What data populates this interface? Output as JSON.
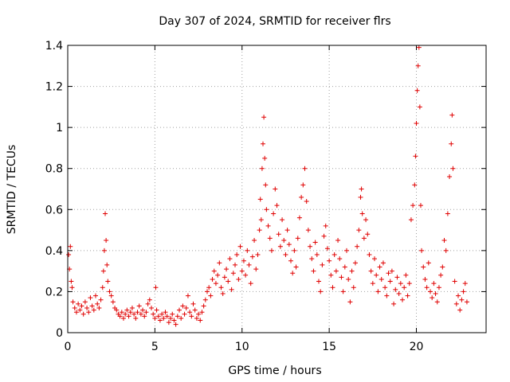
{
  "chart_data": {
    "type": "scatter",
    "title": "Day 307 of 2024, SRMTID for receiver flrs",
    "xlabel": "GPS time / hours",
    "ylabel": "SRMTID / TECUs",
    "xlim": [
      0,
      24
    ],
    "ylim": [
      0,
      1.4
    ],
    "x_ticks": [
      0,
      5,
      10,
      15,
      20
    ],
    "x_tick_labels": [
      "0",
      "5",
      "10",
      "15",
      "20"
    ],
    "y_ticks": [
      0,
      0.2,
      0.4,
      0.6,
      0.8,
      1,
      1.2,
      1.4
    ],
    "y_tick_labels": [
      "0",
      "0.2",
      "0.4",
      "0.6",
      "0.8",
      "1",
      "1.2",
      "1.4"
    ],
    "grid": true,
    "marker": "plus",
    "color": "#e00000",
    "series": [
      {
        "name": "SRMTID",
        "points": [
          [
            0.05,
            0.38
          ],
          [
            0.1,
            0.31
          ],
          [
            0.15,
            0.42
          ],
          [
            0.2,
            0.25
          ],
          [
            0.25,
            0.22
          ],
          [
            0.3,
            0.15
          ],
          [
            0.4,
            0.12
          ],
          [
            0.5,
            0.1
          ],
          [
            0.6,
            0.14
          ],
          [
            0.7,
            0.11
          ],
          [
            0.8,
            0.13
          ],
          [
            0.9,
            0.09
          ],
          [
            1.0,
            0.15
          ],
          [
            1.1,
            0.12
          ],
          [
            1.2,
            0.1
          ],
          [
            1.3,
            0.17
          ],
          [
            1.4,
            0.13
          ],
          [
            1.5,
            0.11
          ],
          [
            1.6,
            0.18
          ],
          [
            1.7,
            0.14
          ],
          [
            1.8,
            0.12
          ],
          [
            1.9,
            0.16
          ],
          [
            2.0,
            0.22
          ],
          [
            2.05,
            0.3
          ],
          [
            2.1,
            0.4
          ],
          [
            2.15,
            0.58
          ],
          [
            2.2,
            0.45
          ],
          [
            2.25,
            0.33
          ],
          [
            2.3,
            0.25
          ],
          [
            2.4,
            0.2
          ],
          [
            2.5,
            0.18
          ],
          [
            2.6,
            0.15
          ],
          [
            2.7,
            0.12
          ],
          [
            2.8,
            0.11
          ],
          [
            2.9,
            0.09
          ],
          [
            3.0,
            0.08
          ],
          [
            3.1,
            0.1
          ],
          [
            3.2,
            0.07
          ],
          [
            3.3,
            0.09
          ],
          [
            3.4,
            0.11
          ],
          [
            3.5,
            0.08
          ],
          [
            3.6,
            0.1
          ],
          [
            3.7,
            0.12
          ],
          [
            3.8,
            0.09
          ],
          [
            3.9,
            0.07
          ],
          [
            4.0,
            0.1
          ],
          [
            4.1,
            0.13
          ],
          [
            4.2,
            0.09
          ],
          [
            4.3,
            0.11
          ],
          [
            4.4,
            0.08
          ],
          [
            4.5,
            0.1
          ],
          [
            4.6,
            0.14
          ],
          [
            4.7,
            0.16
          ],
          [
            4.8,
            0.12
          ],
          [
            4.9,
            0.09
          ],
          [
            5.0,
            0.07
          ],
          [
            5.05,
            0.22
          ],
          [
            5.1,
            0.11
          ],
          [
            5.2,
            0.08
          ],
          [
            5.3,
            0.06
          ],
          [
            5.4,
            0.09
          ],
          [
            5.5,
            0.07
          ],
          [
            5.6,
            0.1
          ],
          [
            5.7,
            0.08
          ],
          [
            5.8,
            0.05
          ],
          [
            5.9,
            0.07
          ],
          [
            6.0,
            0.09
          ],
          [
            6.1,
            0.06
          ],
          [
            6.2,
            0.04
          ],
          [
            6.3,
            0.08
          ],
          [
            6.4,
            0.11
          ],
          [
            6.5,
            0.07
          ],
          [
            6.6,
            0.13
          ],
          [
            6.7,
            0.09
          ],
          [
            6.8,
            0.12
          ],
          [
            6.9,
            0.18
          ],
          [
            7.0,
            0.1
          ],
          [
            7.1,
            0.08
          ],
          [
            7.2,
            0.14
          ],
          [
            7.3,
            0.11
          ],
          [
            7.4,
            0.07
          ],
          [
            7.5,
            0.09
          ],
          [
            7.6,
            0.06
          ],
          [
            7.7,
            0.1
          ],
          [
            7.8,
            0.13
          ],
          [
            7.9,
            0.16
          ],
          [
            8.0,
            0.2
          ],
          [
            8.1,
            0.22
          ],
          [
            8.2,
            0.18
          ],
          [
            8.3,
            0.26
          ],
          [
            8.4,
            0.3
          ],
          [
            8.5,
            0.24
          ],
          [
            8.6,
            0.28
          ],
          [
            8.7,
            0.34
          ],
          [
            8.8,
            0.22
          ],
          [
            8.9,
            0.19
          ],
          [
            9.0,
            0.27
          ],
          [
            9.1,
            0.31
          ],
          [
            9.2,
            0.25
          ],
          [
            9.3,
            0.36
          ],
          [
            9.4,
            0.21
          ],
          [
            9.5,
            0.29
          ],
          [
            9.6,
            0.33
          ],
          [
            9.7,
            0.38
          ],
          [
            9.8,
            0.26
          ],
          [
            9.9,
            0.42
          ],
          [
            10.0,
            0.3
          ],
          [
            10.1,
            0.35
          ],
          [
            10.2,
            0.28
          ],
          [
            10.3,
            0.4
          ],
          [
            10.4,
            0.33
          ],
          [
            10.5,
            0.24
          ],
          [
            10.6,
            0.37
          ],
          [
            10.7,
            0.45
          ],
          [
            10.8,
            0.31
          ],
          [
            10.9,
            0.38
          ],
          [
            11.0,
            0.5
          ],
          [
            11.05,
            0.65
          ],
          [
            11.1,
            0.55
          ],
          [
            11.15,
            0.8
          ],
          [
            11.2,
            0.92
          ],
          [
            11.25,
            1.05
          ],
          [
            11.3,
            0.85
          ],
          [
            11.35,
            0.72
          ],
          [
            11.4,
            0.6
          ],
          [
            11.5,
            0.52
          ],
          [
            11.6,
            0.46
          ],
          [
            11.7,
            0.4
          ],
          [
            11.8,
            0.58
          ],
          [
            11.9,
            0.7
          ],
          [
            12.0,
            0.62
          ],
          [
            12.1,
            0.48
          ],
          [
            12.2,
            0.42
          ],
          [
            12.3,
            0.55
          ],
          [
            12.4,
            0.45
          ],
          [
            12.5,
            0.38
          ],
          [
            12.6,
            0.5
          ],
          [
            12.7,
            0.43
          ],
          [
            12.8,
            0.35
          ],
          [
            12.9,
            0.29
          ],
          [
            13.0,
            0.4
          ],
          [
            13.1,
            0.32
          ],
          [
            13.2,
            0.46
          ],
          [
            13.3,
            0.56
          ],
          [
            13.4,
            0.66
          ],
          [
            13.5,
            0.72
          ],
          [
            13.6,
            0.8
          ],
          [
            13.7,
            0.64
          ],
          [
            13.8,
            0.5
          ],
          [
            13.9,
            0.42
          ],
          [
            14.0,
            0.36
          ],
          [
            14.1,
            0.3
          ],
          [
            14.2,
            0.44
          ],
          [
            14.3,
            0.38
          ],
          [
            14.4,
            0.25
          ],
          [
            14.5,
            0.2
          ],
          [
            14.6,
            0.33
          ],
          [
            14.7,
            0.47
          ],
          [
            14.8,
            0.52
          ],
          [
            14.9,
            0.41
          ],
          [
            15.0,
            0.35
          ],
          [
            15.1,
            0.28
          ],
          [
            15.2,
            0.22
          ],
          [
            15.3,
            0.38
          ],
          [
            15.4,
            0.3
          ],
          [
            15.5,
            0.45
          ],
          [
            15.6,
            0.36
          ],
          [
            15.7,
            0.27
          ],
          [
            15.8,
            0.2
          ],
          [
            15.9,
            0.32
          ],
          [
            16.0,
            0.4
          ],
          [
            16.1,
            0.26
          ],
          [
            16.2,
            0.15
          ],
          [
            16.3,
            0.3
          ],
          [
            16.4,
            0.22
          ],
          [
            16.5,
            0.34
          ],
          [
            16.6,
            0.42
          ],
          [
            16.7,
            0.5
          ],
          [
            16.8,
            0.66
          ],
          [
            16.85,
            0.7
          ],
          [
            16.9,
            0.58
          ],
          [
            17.0,
            0.46
          ],
          [
            17.1,
            0.55
          ],
          [
            17.2,
            0.48
          ],
          [
            17.3,
            0.38
          ],
          [
            17.4,
            0.3
          ],
          [
            17.5,
            0.24
          ],
          [
            17.6,
            0.36
          ],
          [
            17.7,
            0.28
          ],
          [
            17.8,
            0.2
          ],
          [
            17.9,
            0.32
          ],
          [
            18.0,
            0.26
          ],
          [
            18.1,
            0.34
          ],
          [
            18.2,
            0.22
          ],
          [
            18.3,
            0.18
          ],
          [
            18.4,
            0.29
          ],
          [
            18.5,
            0.25
          ],
          [
            18.6,
            0.3
          ],
          [
            18.7,
            0.14
          ],
          [
            18.8,
            0.21
          ],
          [
            18.9,
            0.27
          ],
          [
            19.0,
            0.19
          ],
          [
            19.1,
            0.24
          ],
          [
            19.2,
            0.16
          ],
          [
            19.3,
            0.22
          ],
          [
            19.4,
            0.28
          ],
          [
            19.5,
            0.18
          ],
          [
            19.6,
            0.24
          ],
          [
            19.7,
            0.55
          ],
          [
            19.8,
            0.62
          ],
          [
            19.9,
            0.72
          ],
          [
            19.95,
            0.86
          ],
          [
            20.0,
            1.02
          ],
          [
            20.05,
            1.18
          ],
          [
            20.1,
            1.3
          ],
          [
            20.15,
            1.39
          ],
          [
            20.2,
            1.1
          ],
          [
            20.25,
            0.62
          ],
          [
            20.3,
            0.4
          ],
          [
            20.4,
            0.32
          ],
          [
            20.5,
            0.26
          ],
          [
            20.6,
            0.22
          ],
          [
            20.7,
            0.34
          ],
          [
            20.8,
            0.2
          ],
          [
            20.9,
            0.17
          ],
          [
            21.0,
            0.24
          ],
          [
            21.1,
            0.19
          ],
          [
            21.2,
            0.15
          ],
          [
            21.3,
            0.22
          ],
          [
            21.4,
            0.28
          ],
          [
            21.5,
            0.32
          ],
          [
            21.6,
            0.45
          ],
          [
            21.7,
            0.4
          ],
          [
            21.8,
            0.58
          ],
          [
            21.9,
            0.76
          ],
          [
            22.0,
            0.92
          ],
          [
            22.05,
            1.06
          ],
          [
            22.1,
            0.8
          ],
          [
            22.2,
            0.25
          ],
          [
            22.3,
            0.14
          ],
          [
            22.4,
            0.18
          ],
          [
            22.5,
            0.11
          ],
          [
            22.6,
            0.16
          ],
          [
            22.7,
            0.2
          ],
          [
            22.8,
            0.24
          ],
          [
            22.9,
            0.15
          ]
        ]
      }
    ]
  }
}
